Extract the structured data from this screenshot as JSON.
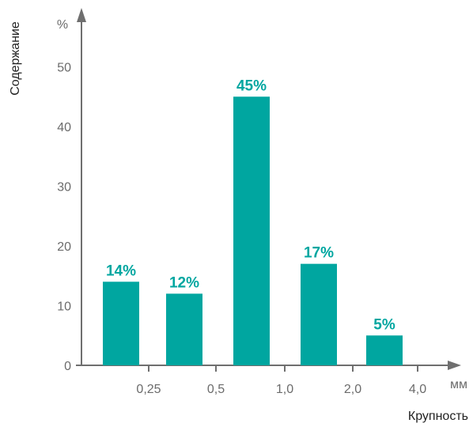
{
  "chart_data": {
    "type": "bar",
    "ylabel": "Содержание",
    "xlabel": "Крупность",
    "y_unit": "%",
    "x_unit": "мм",
    "ylim": [
      0,
      55
    ],
    "y_ticks": [
      "0",
      "10",
      "20",
      "30",
      "40",
      "50"
    ],
    "x_ticks": [
      "0,25",
      "0,5",
      "1,0",
      "2,0",
      "4,0"
    ],
    "values": [
      14,
      12,
      45,
      17,
      5
    ],
    "data_labels": [
      "14%",
      "12%",
      "45%",
      "17%",
      "5%"
    ],
    "grid": false,
    "colors": {
      "bar": "#00a6a0",
      "label": "#00a6a0",
      "axis": "#6f6f6f"
    }
  }
}
